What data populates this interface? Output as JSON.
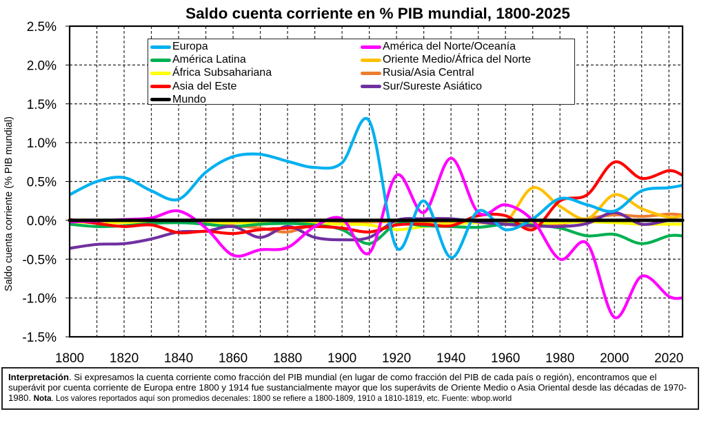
{
  "chart_data": {
    "type": "line",
    "title": "Saldo cuenta corriente en % PIB mundial, 1800-2025",
    "xlabel": "",
    "ylabel": "Saldo cuenta corriente (% PIB mundial)",
    "xlim": [
      1800,
      2025
    ],
    "ylim": [
      -1.5,
      2.5
    ],
    "x_ticks": [
      "1800",
      "1820",
      "1840",
      "1860",
      "1880",
      "1900",
      "1920",
      "1940",
      "1960",
      "1980",
      "2000",
      "2020"
    ],
    "y_ticks": [
      "2.5%",
      "2.0%",
      "1.5%",
      "1.0%",
      "0.5%",
      "0.0%",
      "-0.5%",
      "-1.0%",
      "-1.5%"
    ],
    "grid": true,
    "legend_position": "top-center",
    "x": [
      1800,
      1810,
      1820,
      1830,
      1840,
      1850,
      1860,
      1870,
      1880,
      1890,
      1900,
      1910,
      1920,
      1930,
      1940,
      1950,
      1960,
      1970,
      1980,
      1990,
      2000,
      2010,
      2020,
      2025
    ],
    "series": [
      {
        "name": "Europa",
        "color": "#00b0f0",
        "values": [
          0.33,
          0.5,
          0.55,
          0.38,
          0.27,
          0.62,
          0.82,
          0.85,
          0.76,
          0.68,
          0.74,
          1.28,
          -0.35,
          0.25,
          -0.48,
          0.12,
          -0.12,
          0.02,
          0.28,
          0.2,
          0.12,
          0.38,
          0.42,
          0.45
        ]
      },
      {
        "name": "América Latina",
        "color": "#00b050",
        "values": [
          -0.05,
          -0.08,
          -0.07,
          -0.04,
          -0.03,
          -0.05,
          -0.08,
          -0.05,
          -0.04,
          -0.06,
          -0.12,
          -0.3,
          -0.05,
          -0.07,
          -0.08,
          -0.09,
          -0.05,
          -0.06,
          -0.1,
          -0.2,
          -0.18,
          -0.3,
          -0.2,
          -0.2
        ]
      },
      {
        "name": "África Subsahariana",
        "color": "#ffff00",
        "values": [
          -0.02,
          -0.03,
          -0.03,
          -0.02,
          -0.02,
          -0.03,
          -0.03,
          -0.04,
          -0.04,
          -0.04,
          -0.05,
          -0.06,
          -0.12,
          -0.08,
          -0.05,
          -0.03,
          -0.03,
          -0.04,
          -0.03,
          -0.02,
          -0.03,
          -0.05,
          -0.05,
          -0.05
        ]
      },
      {
        "name": "Asia del Este",
        "color": "#ff0000",
        "values": [
          0.01,
          -0.04,
          -0.08,
          -0.06,
          -0.16,
          -0.14,
          -0.17,
          -0.12,
          -0.1,
          -0.08,
          -0.1,
          -0.15,
          -0.06,
          -0.05,
          -0.07,
          0.06,
          0.06,
          -0.12,
          0.25,
          0.33,
          0.75,
          0.54,
          0.64,
          0.58
        ]
      },
      {
        "name": "Mundo",
        "color": "#000000",
        "values": [
          0,
          0,
          0,
          0,
          0,
          0,
          0,
          0,
          0,
          0,
          0,
          0,
          0,
          0,
          0,
          0,
          0,
          0,
          0,
          0,
          0,
          0,
          0,
          0
        ]
      },
      {
        "name": "América del Norte/Oceanía",
        "color": "#ff00ff",
        "values": [
          -0.02,
          -0.01,
          0.01,
          0.03,
          0.12,
          -0.1,
          -0.45,
          -0.38,
          -0.35,
          -0.08,
          0.02,
          -0.42,
          0.58,
          0.1,
          0.8,
          0.1,
          0.2,
          0.0,
          -0.5,
          -0.3,
          -1.25,
          -0.72,
          -0.98,
          -1.0
        ]
      },
      {
        "name": "Oriente Medio/África del Norte",
        "color": "#ffc000",
        "values": [
          0,
          0,
          0,
          0,
          0,
          0,
          0,
          0,
          0,
          0,
          0,
          -0.01,
          -0.02,
          -0.02,
          -0.02,
          -0.01,
          -0.02,
          0.42,
          0.18,
          0.02,
          0.33,
          0.15,
          0.04,
          0.06
        ]
      },
      {
        "name": "Rusia/Asia Central",
        "color": "#ed7d31",
        "values": [
          -0.02,
          -0.02,
          -0.02,
          -0.02,
          -0.02,
          -0.05,
          -0.07,
          -0.1,
          -0.15,
          -0.05,
          -0.04,
          -0.02,
          -0.02,
          -0.02,
          -0.02,
          -0.03,
          -0.05,
          -0.08,
          -0.05,
          0.02,
          0.07,
          0.05,
          0.08,
          0.07
        ]
      },
      {
        "name": "Sur/Sureste Asiático",
        "color": "#7030a0",
        "values": [
          -0.36,
          -0.31,
          -0.3,
          -0.24,
          -0.15,
          -0.14,
          -0.08,
          -0.22,
          -0.08,
          -0.22,
          -0.25,
          -0.22,
          0.0,
          0.02,
          0.02,
          -0.02,
          -0.05,
          -0.07,
          -0.08,
          -0.04,
          0.1,
          -0.05,
          0.0,
          0.0
        ]
      }
    ]
  },
  "note": {
    "interp_label": "Interpretación",
    "interp_text": ". Si expresamos la cuenta corriente como fracción del PIB mundial (en lugar de como fracción del PIB de cada país o región), encontramos que el superávit por cuenta corriente de Europa entre 1800 y 1914 fue sustancialmente mayor que los superávits de Oriente Medio o Asia Oriental desde las décadas de 1970-1980. ",
    "nota_label": "Nota",
    "nota_text": ". Los valores reportados aquí son promedios decenales: 1800 se refiere a 1800-1809, 1910 a 1810-1819, etc. Fuente: wbop.world"
  }
}
